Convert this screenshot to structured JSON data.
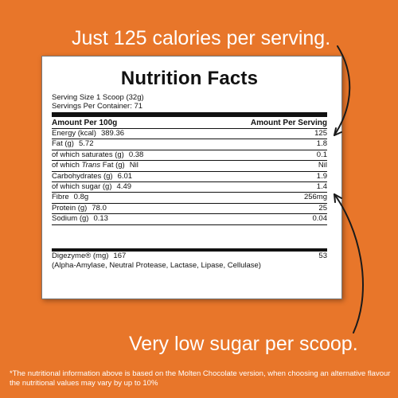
{
  "callouts": {
    "top": "Just 125 calories per serving.",
    "bottom": "Very low sugar per scoop."
  },
  "footnote": "*The nutritional information above is based on the Molten Chocolate version, when choosing an alternative flavour the nutritional values may vary by up to 10%",
  "label": {
    "title": "Nutrition Facts",
    "serving_size": "Serving Size 1 Scoop (32g)",
    "servings_per_container": "Servings Per Container: 71",
    "header_left": "Amount Per 100g",
    "header_right": "Amount Per Serving",
    "rows": [
      {
        "name": "Energy (kcal)",
        "per100": "389.36",
        "per_serving": "125"
      },
      {
        "name": "Fat (g)",
        "per100": "5.72",
        "per_serving": "1.8"
      },
      {
        "name": "of which saturates (g)",
        "per100": "0.38",
        "per_serving": "0.1"
      },
      {
        "name_prefix": "of which ",
        "name_italic": "Trans",
        "name_suffix": " Fat (g)",
        "per100": "Nil",
        "per_serving": "Nil"
      },
      {
        "name": "Carbohydrates (g)",
        "per100": "6.01",
        "per_serving": "1.9"
      },
      {
        "name": "of which sugar (g)",
        "per100": "4.49",
        "per_serving": "1.4"
      },
      {
        "name": "Fibre",
        "per100": "0.8g",
        "per_serving": "256mg"
      },
      {
        "name": "Protein (g)",
        "per100": "78.0",
        "per_serving": "25"
      },
      {
        "name": "Sodium (g)",
        "per100": "0.13",
        "per_serving": "0.04"
      }
    ],
    "digezyme": {
      "name": "Digezyme® (mg)",
      "per100": "167",
      "per_serving": "53",
      "note": "(Alpha-Amylase, Neutral Protease, Lactase, Lipase, Cellulase)"
    }
  },
  "colors": {
    "background": "#e8762a",
    "card": "#ffffff",
    "arrow": "#1a1a1a"
  }
}
